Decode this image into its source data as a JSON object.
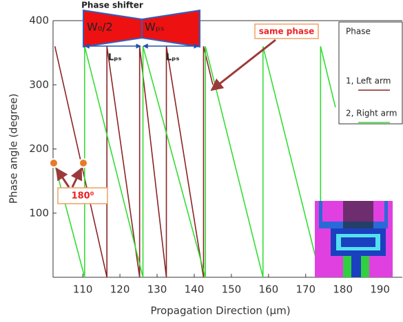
{
  "chart_data": {
    "type": "line",
    "xlabel": "Propagation Direction (μm)",
    "ylabel": "Phase angle (degree)",
    "xlim": [
      102,
      196
    ],
    "ylim": [
      0,
      400
    ],
    "xticks": [
      110,
      120,
      130,
      140,
      150,
      160,
      170,
      180,
      190
    ],
    "yticks": [
      100,
      200,
      300,
      400
    ],
    "legend_title": "Phase",
    "series": [
      {
        "name": "1, Left arm",
        "color": "#8b2323",
        "x": [
          102.5,
          116.5,
          116.5,
          125.3,
          125.3,
          132.5,
          132.5,
          142.5,
          142.5,
          145
        ],
        "values": [
          360,
          0,
          360,
          0,
          360,
          0,
          360,
          0,
          360,
          300
        ]
      },
      {
        "name": "2, Right arm",
        "color": "#33dd33",
        "x": [
          102.5,
          110.5,
          110.5,
          126.2,
          126.2,
          143,
          143,
          158.5,
          158.5,
          174,
          174,
          178
        ],
        "values": [
          175,
          0,
          360,
          0,
          360,
          0,
          360,
          0,
          360,
          0,
          360,
          265
        ]
      }
    ],
    "annotations": {
      "phase_shifter": "Phase shifter",
      "w0": "W₀/2",
      "wps": "Wₚₛ",
      "lps": [
        "Lₚₛ",
        "Lₚₛ"
      ],
      "same_phase": "same phase",
      "degree_180": "180⁰"
    }
  }
}
